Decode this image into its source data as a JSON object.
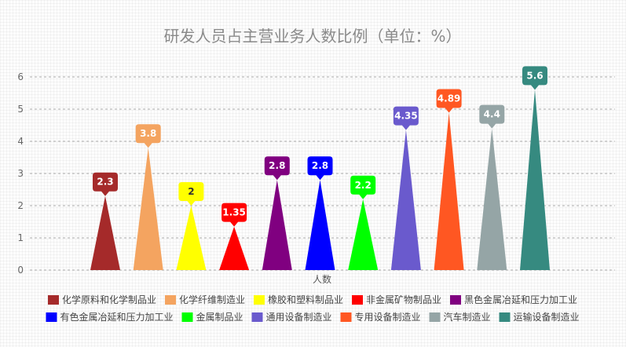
{
  "chart_data": {
    "type": "bar",
    "title": "研发人员占主营业务人数比例（单位：%）",
    "xlabel": "人数",
    "ylabel": "",
    "ylim": [
      0,
      6
    ],
    "yticks": [
      0,
      1,
      2,
      3,
      4,
      5,
      6
    ],
    "grid": true,
    "legend_position": "bottom",
    "series": [
      {
        "name": "化学原料和化学制品业",
        "value": 2.3,
        "label": "2.3",
        "color": "#a52a2a"
      },
      {
        "name": "化学纤维制造业",
        "value": 3.8,
        "label": "3.8",
        "color": "#f4a460"
      },
      {
        "name": "橡胶和塑料制品业",
        "value": 2,
        "label": "2",
        "color": "#ffff00"
      },
      {
        "name": "非金属矿物制品业",
        "value": 1.35,
        "label": "1.35",
        "color": "#ff0000"
      },
      {
        "name": "黑色金属冶延和压力加工业",
        "value": 2.8,
        "label": "2.8",
        "color": "#800080"
      },
      {
        "name": "有色金属冶延和压力加工业",
        "value": 2.8,
        "label": "2.8",
        "color": "#0000ff"
      },
      {
        "name": "金属制品业",
        "value": 2.2,
        "label": "2.2",
        "color": "#00ff00"
      },
      {
        "name": "通用设备制造业",
        "value": 4.35,
        "label": "4.35",
        "color": "#6a5acd"
      },
      {
        "name": "专用设备制造业",
        "value": 4.89,
        "label": "4.89",
        "color": "#ff5722"
      },
      {
        "name": "汽车制造业",
        "value": 4.4,
        "label": "4.4",
        "color": "#95a5a6"
      },
      {
        "name": "运输设备制造业",
        "value": 5.6,
        "label": "5.6",
        "color": "#368a80"
      }
    ]
  }
}
